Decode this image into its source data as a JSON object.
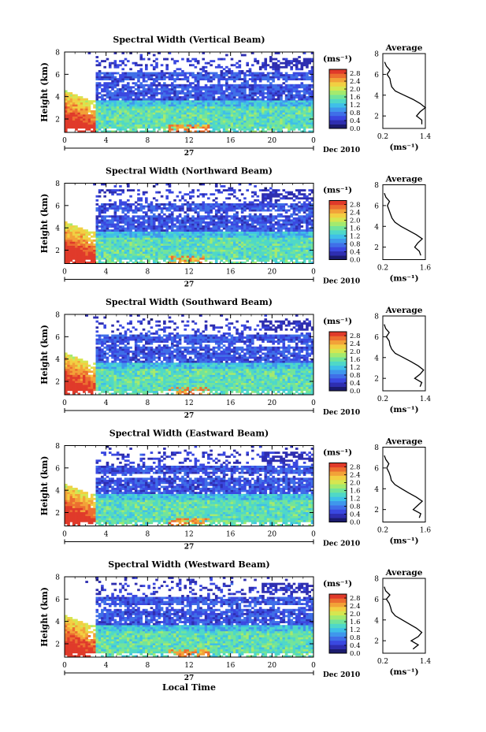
{
  "figure": {
    "xlabel": "Local Time",
    "day_label": "27",
    "month_label": "Dec 2010",
    "cbar_unit": "(ms⁻¹)",
    "avg_title": "Average",
    "avg_unit": "(ms⁻¹)"
  },
  "colors": {
    "scale": [
      "#1b1b6e",
      "#2e2eb0",
      "#3a48e0",
      "#3f6fe8",
      "#3f97ec",
      "#3fbfe8",
      "#4fd8c8",
      "#72e49a",
      "#a4ea6e",
      "#d6e650",
      "#f2cf42",
      "#f2a238",
      "#ec6e30",
      "#e03a2a"
    ],
    "missing": "#ffffff",
    "frame": "#000000"
  },
  "chart_data": [
    {
      "type": "heatmap",
      "title": "Spectral Width (Vertical Beam)",
      "xlabel": "Local Time",
      "ylabel": "Height (km)",
      "x_ticks": [
        "0",
        "4",
        "8",
        "12",
        "16",
        "20",
        "0"
      ],
      "xlim": [
        0,
        24
      ],
      "y_ticks": [
        "2",
        "4",
        "6",
        "8"
      ],
      "ylim": [
        0.8,
        8
      ],
      "colorbar": {
        "unit": "(ms⁻¹)",
        "ticks": [
          "0.0",
          "0.4",
          "0.8",
          "1.2",
          "1.6",
          "2.0",
          "2.4",
          "2.8"
        ],
        "range": [
          0,
          3.0
        ]
      },
      "average_profile": {
        "title": "Average",
        "xlabel": "(ms⁻¹)",
        "x_ticks": [
          "0.2",
          "1.4"
        ],
        "xlim": [
          0.2,
          1.4
        ],
        "y_ticks": [
          "2",
          "4",
          "6",
          "8"
        ],
        "ylim": [
          0.8,
          8
        ],
        "height": [
          1.2,
          1.6,
          2.0,
          2.4,
          2.8,
          3.2,
          3.6,
          4.0,
          4.4,
          4.8,
          5.2,
          5.6,
          6.0,
          6.4,
          6.8,
          7.2
        ],
        "width": [
          1.3,
          1.3,
          1.15,
          1.25,
          1.4,
          1.25,
          1.05,
          0.8,
          0.55,
          0.45,
          0.42,
          0.4,
          0.32,
          0.4,
          0.3,
          0.25
        ]
      }
    },
    {
      "type": "heatmap",
      "title": "Spectral Width (Northward Beam)",
      "xlabel": "Local Time",
      "ylabel": "Height (km)",
      "x_ticks": [
        "0",
        "4",
        "8",
        "12",
        "16",
        "20",
        "0"
      ],
      "xlim": [
        0,
        24
      ],
      "y_ticks": [
        "2",
        "4",
        "6",
        "8"
      ],
      "ylim": [
        0.8,
        8
      ],
      "colorbar": {
        "unit": "(ms⁻¹)",
        "ticks": [
          "0.0",
          "0.4",
          "0.8",
          "1.2",
          "1.6",
          "2.0",
          "2.4",
          "2.8"
        ],
        "range": [
          0,
          3.0
        ]
      },
      "average_profile": {
        "title": "Average",
        "xlabel": "(ms⁻¹)",
        "x_ticks": [
          "0.2",
          "1.6"
        ],
        "xlim": [
          0.2,
          1.6
        ],
        "y_ticks": [
          "2",
          "4",
          "6",
          "8"
        ],
        "ylim": [
          0.8,
          8
        ],
        "height": [
          1.2,
          1.6,
          2.0,
          2.4,
          2.8,
          3.2,
          3.6,
          4.0,
          4.4,
          4.8,
          5.2,
          5.6,
          6.0,
          6.4,
          6.8,
          7.2
        ],
        "width": [
          1.45,
          1.4,
          1.25,
          1.35,
          1.5,
          1.3,
          1.05,
          0.8,
          0.6,
          0.5,
          0.45,
          0.4,
          0.35,
          0.42,
          0.3,
          0.25
        ]
      }
    },
    {
      "type": "heatmap",
      "title": "Spectral Width (Southward Beam)",
      "xlabel": "Local Time",
      "ylabel": "Height (km)",
      "x_ticks": [
        "0",
        "4",
        "8",
        "12",
        "16",
        "20",
        "0"
      ],
      "xlim": [
        0,
        24
      ],
      "y_ticks": [
        "2",
        "4",
        "6",
        "8"
      ],
      "ylim": [
        0.8,
        8
      ],
      "colorbar": {
        "unit": "(ms⁻¹)",
        "ticks": [
          "0.0",
          "0.4",
          "0.8",
          "1.2",
          "1.6",
          "2.0",
          "2.4",
          "2.8"
        ],
        "range": [
          0,
          3.0
        ]
      },
      "average_profile": {
        "title": "Average",
        "xlabel": "(ms⁻¹)",
        "x_ticks": [
          "0.2",
          "1.4"
        ],
        "xlim": [
          0.2,
          1.4
        ],
        "y_ticks": [
          "2",
          "4",
          "6",
          "8"
        ],
        "ylim": [
          0.8,
          8
        ],
        "height": [
          1.2,
          1.6,
          2.0,
          2.4,
          2.8,
          3.2,
          3.6,
          4.0,
          4.4,
          4.8,
          5.2,
          5.6,
          6.0,
          6.4,
          6.8,
          7.2
        ],
        "width": [
          1.25,
          1.3,
          1.1,
          1.25,
          1.35,
          1.2,
          1.0,
          0.78,
          0.55,
          0.45,
          0.4,
          0.38,
          0.3,
          0.38,
          0.28,
          0.24
        ]
      }
    },
    {
      "type": "heatmap",
      "title": "Spectral Width (Eastward Beam)",
      "xlabel": "Local Time",
      "ylabel": "Height (km)",
      "x_ticks": [
        "0",
        "4",
        "8",
        "12",
        "16",
        "20",
        "0"
      ],
      "xlim": [
        0,
        24
      ],
      "y_ticks": [
        "2",
        "4",
        "6",
        "8"
      ],
      "ylim": [
        0.8,
        8
      ],
      "colorbar": {
        "unit": "(ms⁻¹)",
        "ticks": [
          "0.0",
          "0.4",
          "0.8",
          "1.2",
          "1.6",
          "2.0",
          "2.4",
          "2.8"
        ],
        "range": [
          0,
          3.0
        ]
      },
      "average_profile": {
        "title": "Average",
        "xlabel": "(ms⁻¹)",
        "x_ticks": [
          "0.2",
          "1.6"
        ],
        "xlim": [
          0.2,
          1.6
        ],
        "y_ticks": [
          "2",
          "4",
          "6",
          "8"
        ],
        "ylim": [
          0.8,
          8
        ],
        "height": [
          1.2,
          1.6,
          2.0,
          2.4,
          2.8,
          3.2,
          3.6,
          4.0,
          4.4,
          4.8,
          5.2,
          5.6,
          6.0,
          6.4,
          6.8,
          7.2
        ],
        "width": [
          1.4,
          1.45,
          1.2,
          1.35,
          1.5,
          1.3,
          1.05,
          0.82,
          0.6,
          0.48,
          0.45,
          0.4,
          0.33,
          0.4,
          0.3,
          0.25
        ]
      }
    },
    {
      "type": "heatmap",
      "title": "Spectral Width (Westward Beam)",
      "xlabel": "Local Time",
      "ylabel": "Height (km)",
      "x_ticks": [
        "0",
        "4",
        "8",
        "12",
        "16",
        "20",
        "0"
      ],
      "xlim": [
        0,
        24
      ],
      "y_ticks": [
        "2",
        "4",
        "6",
        "8"
      ],
      "ylim": [
        0.8,
        8
      ],
      "colorbar": {
        "unit": "(ms⁻¹)",
        "ticks": [
          "0.0",
          "0.4",
          "0.8",
          "1.2",
          "1.6",
          "2.0",
          "2.4",
          "2.8"
        ],
        "range": [
          0,
          3.0
        ]
      },
      "average_profile": {
        "title": "Average",
        "xlabel": "(ms⁻¹)",
        "x_ticks": [
          "0.2",
          "1.4"
        ],
        "xlim": [
          0.2,
          1.4
        ],
        "y_ticks": [
          "2",
          "4",
          "6",
          "8"
        ],
        "ylim": [
          0.8,
          8
        ],
        "height": [
          1.2,
          1.6,
          2.0,
          2.4,
          2.8,
          3.2,
          3.6,
          4.0,
          4.4,
          4.8,
          5.2,
          5.6,
          6.0,
          6.4,
          6.8,
          7.2
        ],
        "width": [
          1.05,
          1.2,
          1.0,
          1.2,
          1.3,
          1.15,
          0.95,
          0.75,
          0.55,
          0.45,
          0.42,
          0.38,
          0.3,
          0.4,
          0.28,
          0.24
        ]
      }
    }
  ]
}
